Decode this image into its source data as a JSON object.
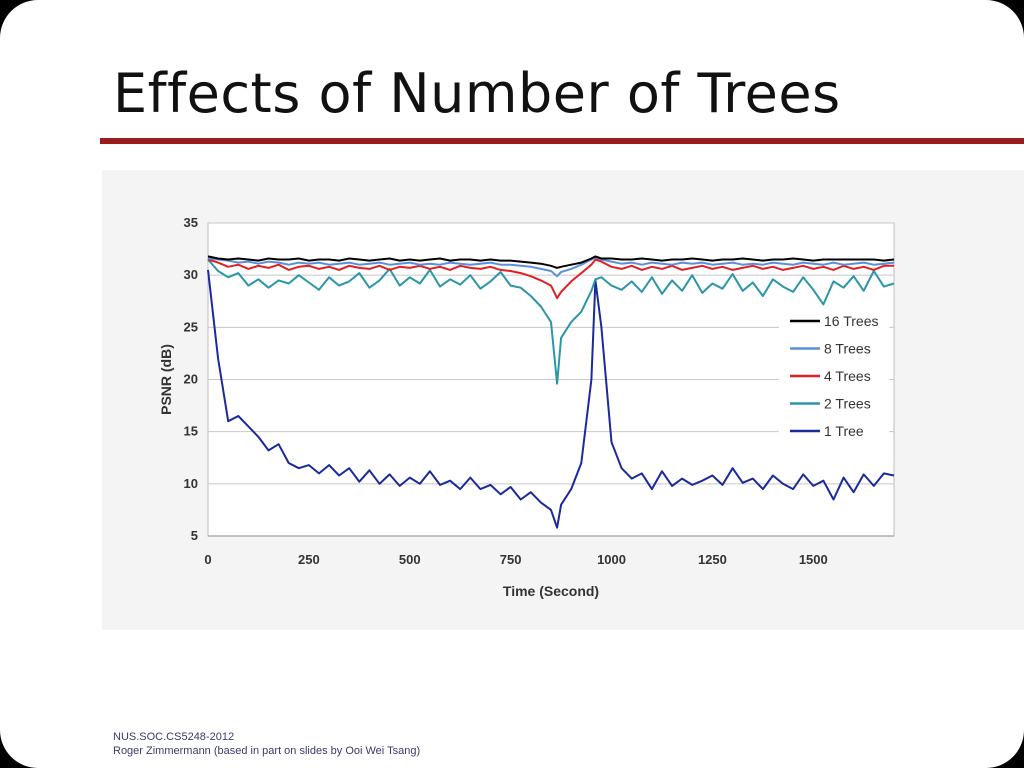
{
  "slide": {
    "title": "Effects of Number of Trees",
    "footer_line1": "NUS.SOC.CS5248-2012",
    "footer_line2": "Roger Zimmermann (based in part on slides by Ooi Wei Tsang)",
    "accent_color": "#9b1c1c"
  },
  "chart_data": {
    "type": "line",
    "title": "",
    "xlabel": "Time (Second)",
    "ylabel": "PSNR (dB)",
    "xlim": [
      0,
      1700
    ],
    "ylim": [
      5,
      35
    ],
    "xticks": [
      0,
      250,
      500,
      750,
      1000,
      1250,
      1500
    ],
    "yticks": [
      5,
      10,
      15,
      20,
      25,
      30,
      35
    ],
    "grid": "horizontal",
    "legend_position": "right",
    "x": [
      0,
      25,
      50,
      75,
      100,
      125,
      150,
      175,
      200,
      225,
      250,
      275,
      300,
      325,
      350,
      375,
      400,
      425,
      450,
      475,
      500,
      525,
      550,
      575,
      600,
      625,
      650,
      675,
      700,
      725,
      750,
      775,
      800,
      825,
      850,
      865,
      875,
      900,
      925,
      950,
      960,
      975,
      1000,
      1025,
      1050,
      1075,
      1100,
      1125,
      1150,
      1175,
      1200,
      1225,
      1250,
      1275,
      1300,
      1325,
      1350,
      1375,
      1400,
      1425,
      1450,
      1475,
      1500,
      1525,
      1550,
      1575,
      1600,
      1625,
      1650,
      1675,
      1700
    ],
    "series": [
      {
        "name": "16 Trees",
        "color": "#000000",
        "values": [
          31.8,
          31.6,
          31.5,
          31.6,
          31.5,
          31.4,
          31.6,
          31.5,
          31.5,
          31.6,
          31.4,
          31.5,
          31.5,
          31.4,
          31.6,
          31.5,
          31.4,
          31.5,
          31.6,
          31.4,
          31.5,
          31.4,
          31.5,
          31.6,
          31.4,
          31.5,
          31.5,
          31.4,
          31.5,
          31.4,
          31.4,
          31.3,
          31.2,
          31.1,
          30.9,
          30.7,
          30.8,
          31.0,
          31.2,
          31.6,
          31.8,
          31.6,
          31.6,
          31.5,
          31.5,
          31.6,
          31.5,
          31.4,
          31.5,
          31.5,
          31.6,
          31.5,
          31.4,
          31.5,
          31.5,
          31.6,
          31.5,
          31.4,
          31.5,
          31.5,
          31.6,
          31.5,
          31.4,
          31.5,
          31.5,
          31.5,
          31.5,
          31.5,
          31.5,
          31.4,
          31.5
        ]
      },
      {
        "name": "8 Trees",
        "color": "#5b8fd9",
        "values": [
          31.6,
          31.5,
          31.4,
          31.2,
          31.3,
          31.1,
          31.3,
          31.2,
          31.0,
          31.2,
          31.1,
          31.2,
          31.0,
          31.1,
          31.2,
          31.0,
          31.1,
          31.2,
          31.0,
          31.1,
          31.2,
          31.0,
          31.1,
          31.0,
          31.2,
          31.1,
          31.0,
          31.1,
          31.2,
          31.0,
          31.0,
          30.9,
          30.8,
          30.6,
          30.4,
          29.9,
          30.3,
          30.6,
          31.0,
          31.5,
          31.7,
          31.5,
          31.3,
          31.1,
          31.2,
          31.0,
          31.2,
          31.1,
          31.0,
          31.2,
          31.1,
          31.2,
          31.0,
          31.1,
          31.2,
          31.0,
          31.1,
          31.0,
          31.2,
          31.1,
          31.0,
          31.2,
          31.1,
          31.0,
          31.2,
          31.0,
          31.1,
          31.2,
          31.0,
          31.1,
          31.2
        ]
      },
      {
        "name": "4 Trees",
        "color": "#e02020",
        "values": [
          31.5,
          31.2,
          30.8,
          31.0,
          30.6,
          30.9,
          30.7,
          31.0,
          30.5,
          30.8,
          30.9,
          30.6,
          30.8,
          30.5,
          30.9,
          30.7,
          30.6,
          30.9,
          30.5,
          30.8,
          30.7,
          30.9,
          30.6,
          30.8,
          30.5,
          30.9,
          30.7,
          30.6,
          30.8,
          30.5,
          30.4,
          30.2,
          29.9,
          29.5,
          29.0,
          27.8,
          28.4,
          29.4,
          30.2,
          31.0,
          31.5,
          31.3,
          30.8,
          30.6,
          30.9,
          30.5,
          30.8,
          30.6,
          30.9,
          30.5,
          30.7,
          30.9,
          30.6,
          30.8,
          30.5,
          30.7,
          30.9,
          30.6,
          30.8,
          30.5,
          30.7,
          30.9,
          30.6,
          30.8,
          30.5,
          30.9,
          30.6,
          30.8,
          30.5,
          30.9,
          30.9
        ]
      },
      {
        "name": "2 Trees",
        "color": "#2a96a8",
        "values": [
          31.5,
          30.4,
          29.8,
          30.2,
          29.0,
          29.6,
          28.8,
          29.5,
          29.2,
          30.0,
          29.3,
          28.6,
          29.8,
          29.0,
          29.4,
          30.2,
          28.8,
          29.5,
          30.6,
          29.0,
          29.8,
          29.2,
          30.5,
          28.9,
          29.6,
          29.1,
          30.0,
          28.7,
          29.4,
          30.3,
          29.0,
          28.8,
          28.0,
          27.0,
          25.5,
          19.6,
          24.0,
          25.5,
          26.5,
          28.5,
          29.6,
          29.8,
          29.0,
          28.6,
          29.4,
          28.4,
          29.8,
          28.2,
          29.5,
          28.5,
          30.0,
          28.3,
          29.2,
          28.7,
          30.1,
          28.5,
          29.3,
          28.0,
          29.6,
          28.9,
          28.4,
          29.8,
          28.6,
          27.2,
          29.4,
          28.8,
          29.9,
          28.5,
          30.4,
          28.9,
          29.2
        ]
      },
      {
        "name": "1 Tree",
        "color": "#1a2a9c",
        "values": [
          30.5,
          22.0,
          16.0,
          16.5,
          15.5,
          14.5,
          13.2,
          13.8,
          12.0,
          11.5,
          11.8,
          11.0,
          11.8,
          10.8,
          11.5,
          10.2,
          11.3,
          10.0,
          10.9,
          9.8,
          10.6,
          10.0,
          11.2,
          9.9,
          10.3,
          9.5,
          10.6,
          9.5,
          9.9,
          9.0,
          9.7,
          8.5,
          9.2,
          8.2,
          7.5,
          5.8,
          8.0,
          9.5,
          12.0,
          20.0,
          29.5,
          25.0,
          14.0,
          11.5,
          10.5,
          11.0,
          9.5,
          11.2,
          9.8,
          10.5,
          9.9,
          10.3,
          10.8,
          9.9,
          11.5,
          10.1,
          10.5,
          9.5,
          10.8,
          10.0,
          9.5,
          10.9,
          9.8,
          10.3,
          8.5,
          10.6,
          9.2,
          10.9,
          9.8,
          11.0,
          10.8
        ]
      }
    ]
  }
}
